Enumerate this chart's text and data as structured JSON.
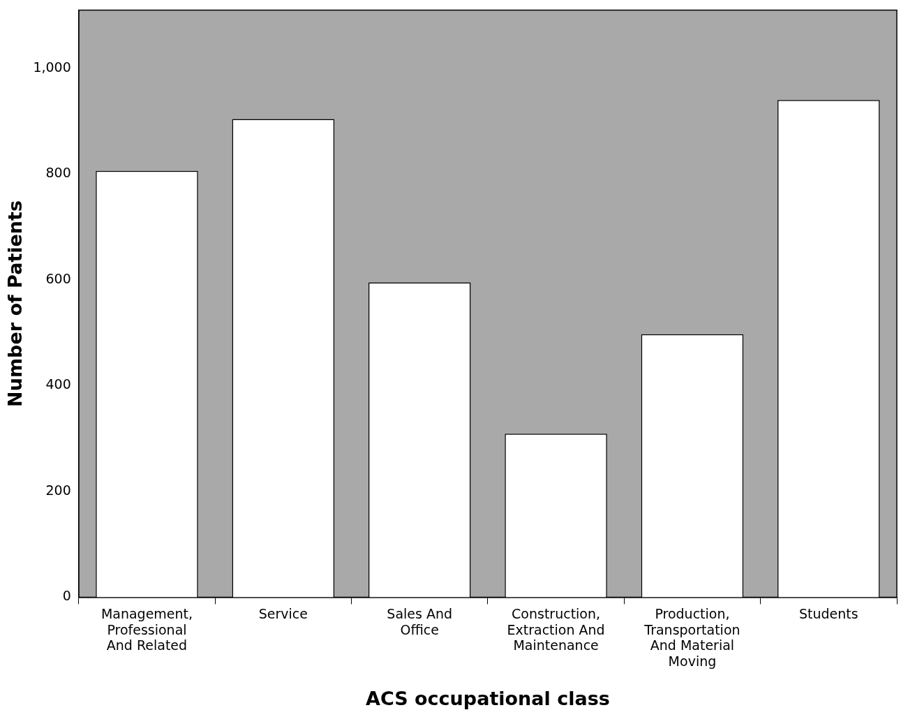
{
  "chart_data": {
    "type": "bar",
    "xlabel": "ACS occupational class",
    "ylabel": "Number of Patients",
    "categories": [
      "Management, Professional And Related",
      "Service",
      "Sales And Office",
      "Construction, Extraction And Maintenance",
      "Production, Transportation And Material Moving",
      "Students"
    ],
    "values": [
      806,
      904,
      595,
      309,
      497,
      940
    ],
    "color": "#ffffff",
    "ylim": [
      0,
      1110
    ],
    "yticks": [
      0,
      200,
      400,
      600,
      800,
      {
        "value": 1000,
        "label": "1,000"
      }
    ],
    "grid": false,
    "legend": false
  }
}
